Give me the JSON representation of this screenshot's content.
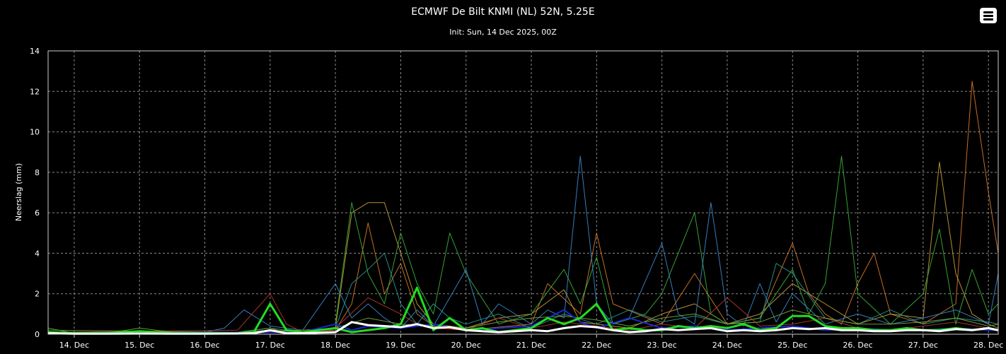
{
  "chart": {
    "title": "ECMWF De Bilt KNMI (NL) 52N, 5.25E",
    "subtitle": "Init: Sun, 14 Dec 2025, 00Z",
    "menu_icon": "hamburger-menu-icon"
  },
  "chart_data": {
    "type": "line",
    "ylabel": "Neerslag (mm)",
    "xlabel": "",
    "ylim": [
      0,
      14
    ],
    "yticks": [
      0,
      2,
      4,
      6,
      8,
      10,
      12,
      14
    ],
    "xlim": [
      13.6,
      28.15
    ],
    "xticks": [
      {
        "day": 14,
        "label": "14. Dec"
      },
      {
        "day": 15,
        "label": "15. Dec"
      },
      {
        "day": 16,
        "label": "16. Dec"
      },
      {
        "day": 17,
        "label": "17. Dec"
      },
      {
        "day": 18,
        "label": "18. Dec"
      },
      {
        "day": 19,
        "label": "19. Dec"
      },
      {
        "day": 20,
        "label": "20. Dec"
      },
      {
        "day": 21,
        "label": "21. Dec"
      },
      {
        "day": 22,
        "label": "22. Dec"
      },
      {
        "day": 23,
        "label": "23. Dec"
      },
      {
        "day": 24,
        "label": "24. Dec"
      },
      {
        "day": 25,
        "label": "25. Dec"
      },
      {
        "day": 26,
        "label": "26. Dec"
      },
      {
        "day": 27,
        "label": "27. Dec"
      },
      {
        "day": 28,
        "label": "28. Dec"
      }
    ],
    "grid": true,
    "series": [
      {
        "color": "#d87a2a",
        "width": 1,
        "x": [
          13.6,
          16.5,
          17.0,
          17.2,
          18.0,
          18.25,
          18.5,
          18.75,
          19.0,
          19.25,
          19.5,
          20.0,
          21.0,
          21.25,
          21.75,
          22.0,
          22.25,
          23.0,
          23.5,
          24.0,
          24.5,
          25.0,
          25.25,
          25.5,
          25.75,
          26.0,
          26.25,
          26.5,
          27.0,
          27.5,
          27.75,
          28.0,
          28.15
        ],
        "y": [
          0.1,
          0.1,
          0.3,
          0.1,
          0.2,
          1.5,
          5.5,
          2.0,
          3.5,
          1.0,
          0.4,
          0.2,
          0.5,
          2.5,
          1.0,
          5.0,
          1.5,
          0.5,
          3.0,
          0.5,
          0.8,
          4.5,
          2.0,
          1.0,
          0.5,
          2.5,
          4.0,
          1.0,
          0.5,
          1.5,
          12.5,
          7.0,
          4.0
        ]
      },
      {
        "color": "#c9a13a",
        "width": 1,
        "x": [
          13.6,
          16.5,
          17.5,
          18.0,
          18.25,
          18.5,
          18.75,
          19.0,
          19.25,
          19.5,
          20.0,
          20.5,
          21.0,
          21.5,
          21.75,
          22.0,
          22.5,
          23.0,
          23.5,
          24.0,
          24.5,
          25.0,
          25.5,
          26.0,
          26.5,
          27.0,
          27.25,
          27.5,
          27.75,
          28.0,
          28.15
        ],
        "y": [
          0.1,
          0.1,
          0.2,
          0.3,
          6.0,
          6.5,
          6.5,
          4.0,
          1.5,
          0.5,
          0.3,
          0.8,
          1.0,
          2.2,
          0.6,
          0.5,
          0.3,
          1.0,
          1.5,
          0.5,
          1.0,
          2.5,
          1.5,
          0.5,
          1.0,
          0.8,
          8.5,
          3.0,
          1.0,
          0.5,
          0.3
        ]
      },
      {
        "color": "#3bb33b",
        "width": 1,
        "x": [
          13.6,
          16.5,
          17.0,
          17.5,
          18.0,
          18.25,
          18.5,
          18.75,
          19.0,
          19.25,
          19.5,
          19.75,
          20.0,
          20.5,
          21.0,
          21.5,
          21.75,
          22.0,
          22.25,
          22.75,
          23.0,
          23.5,
          23.75,
          24.0,
          24.5,
          25.0,
          25.25,
          25.5,
          25.75,
          26.0,
          26.5,
          27.0,
          27.25,
          27.5,
          27.75,
          28.0,
          28.15
        ],
        "y": [
          0.2,
          0.1,
          0.3,
          0.1,
          0.5,
          6.5,
          3.0,
          1.5,
          5.0,
          2.5,
          1.0,
          5.0,
          3.0,
          0.5,
          1.0,
          3.2,
          1.5,
          3.8,
          0.5,
          1.0,
          2.0,
          6.0,
          1.0,
          0.5,
          0.8,
          3.2,
          1.0,
          2.5,
          8.8,
          2.0,
          0.5,
          2.0,
          5.2,
          0.5,
          3.2,
          1.0,
          1.5
        ]
      },
      {
        "color": "#3a8ad0",
        "width": 1,
        "x": [
          13.6,
          16.0,
          16.3,
          16.6,
          17.0,
          17.5,
          18.0,
          18.25,
          18.5,
          18.75,
          19.0,
          19.25,
          19.5,
          20.0,
          20.25,
          20.5,
          21.0,
          21.25,
          21.5,
          21.75,
          22.0,
          22.25,
          22.5,
          23.0,
          23.25,
          23.5,
          23.75,
          24.0,
          24.25,
          24.5,
          24.75,
          25.0,
          25.5,
          26.0,
          26.5,
          27.0,
          27.5,
          28.0,
          28.15
        ],
        "y": [
          0.1,
          0.1,
          0.3,
          1.2,
          0.4,
          0.2,
          2.5,
          0.8,
          1.5,
          0.8,
          0.3,
          1.2,
          0.4,
          3.2,
          0.5,
          1.5,
          0.5,
          1.2,
          0.8,
          8.8,
          1.5,
          0.5,
          0.8,
          4.5,
          1.0,
          0.5,
          6.5,
          1.0,
          0.4,
          2.5,
          0.6,
          2.0,
          0.5,
          1.0,
          0.5,
          0.8,
          1.2,
          0.5,
          3.0
        ]
      },
      {
        "color": "#2a9a9a",
        "width": 1,
        "x": [
          13.6,
          16.5,
          17.0,
          17.5,
          18.0,
          18.25,
          18.5,
          18.75,
          19.0,
          19.25,
          19.5,
          19.75,
          20.0,
          20.5,
          21.0,
          21.5,
          22.0,
          22.5,
          23.0,
          23.5,
          24.0,
          24.5,
          24.75,
          25.0,
          25.5,
          26.0,
          26.5,
          27.0,
          27.5,
          28.0,
          28.15
        ],
        "y": [
          0.1,
          0.1,
          0.2,
          0.1,
          0.3,
          2.5,
          3.2,
          4.0,
          1.5,
          0.5,
          1.5,
          0.8,
          0.5,
          1.0,
          0.3,
          1.0,
          0.5,
          1.2,
          0.6,
          0.9,
          0.5,
          0.6,
          3.5,
          3.0,
          0.8,
          0.5,
          1.2,
          0.5,
          0.8,
          0.6,
          0.5
        ]
      },
      {
        "color": "#b83a2a",
        "width": 1,
        "x": [
          13.6,
          16.5,
          17.0,
          17.25,
          17.5,
          18.0,
          18.5,
          19.0,
          19.25,
          19.5,
          20.0,
          20.5,
          21.0,
          21.5,
          22.0,
          22.5,
          23.0,
          23.5,
          24.0,
          24.5,
          25.0,
          25.5,
          26.0,
          26.5,
          27.0,
          27.5,
          28.0,
          28.15
        ],
        "y": [
          0.1,
          0.2,
          2.0,
          0.5,
          0.1,
          0.3,
          1.8,
          1.0,
          0.5,
          0.3,
          0.2,
          0.8,
          0.3,
          0.6,
          0.4,
          0.2,
          0.5,
          0.3,
          1.8,
          0.4,
          0.5,
          0.8,
          0.3,
          0.2,
          0.4,
          0.6,
          0.3,
          0.2
        ]
      },
      {
        "color": "#7aa83a",
        "width": 1,
        "x": [
          13.6,
          14.0,
          14.5,
          15.0,
          15.5,
          16.0,
          16.5,
          17.0,
          17.5,
          18.0,
          18.5,
          19.0,
          19.5,
          20.0,
          20.5,
          21.0,
          21.5,
          22.0,
          22.5,
          23.0,
          23.5,
          24.0,
          24.5,
          25.0,
          25.5,
          26.0,
          26.5,
          27.0,
          27.5,
          28.0,
          28.15
        ],
        "y": [
          0.3,
          0.05,
          0.05,
          0.3,
          0.1,
          0.05,
          0.05,
          0.2,
          0.1,
          0.3,
          0.8,
          0.5,
          0.4,
          0.3,
          0.6,
          0.8,
          0.9,
          0.7,
          0.4,
          0.8,
          1.0,
          0.5,
          0.6,
          1.2,
          0.8,
          0.5,
          0.5,
          0.6,
          0.8,
          0.4,
          0.5
        ]
      },
      {
        "color": "#1a2ad0",
        "width": 2,
        "x": [
          13.6,
          17.5,
          18.0,
          18.25,
          18.5,
          19.0,
          19.5,
          20.0,
          20.5,
          21.0,
          21.25,
          21.5,
          21.75,
          22.0,
          22.5,
          23.0,
          23.5,
          24.0,
          24.5,
          25.0,
          25.5,
          26.0,
          26.5,
          27.0,
          27.5,
          28.0,
          28.15
        ],
        "y": [
          0.05,
          0.1,
          0.5,
          0.2,
          0.4,
          0.3,
          0.5,
          0.2,
          0.3,
          0.4,
          0.8,
          1.2,
          0.6,
          0.3,
          0.8,
          0.3,
          0.4,
          0.2,
          0.3,
          0.4,
          0.2,
          0.3,
          0.2,
          0.2,
          0.3,
          0.2,
          0.2
        ]
      },
      {
        "color": "#22dd22",
        "width": 3,
        "x": [
          13.6,
          14.0,
          14.5,
          15.0,
          15.5,
          16.0,
          16.5,
          16.75,
          17.0,
          17.25,
          17.5,
          17.75,
          18.0,
          18.25,
          18.5,
          18.75,
          19.0,
          19.25,
          19.5,
          19.75,
          20.0,
          20.25,
          20.5,
          20.75,
          21.0,
          21.25,
          21.5,
          21.75,
          22.0,
          22.25,
          22.5,
          22.75,
          23.0,
          23.25,
          23.5,
          23.75,
          24.0,
          24.25,
          24.5,
          24.75,
          25.0,
          25.25,
          25.5,
          25.75,
          26.0,
          26.25,
          26.5,
          26.75,
          27.0,
          27.25,
          27.5,
          27.75,
          28.0,
          28.15
        ],
        "y": [
          0.1,
          0.05,
          0.05,
          0.15,
          0.05,
          0.05,
          0.05,
          0.1,
          1.5,
          0.2,
          0.1,
          0.2,
          0.3,
          0.1,
          0.2,
          0.3,
          0.5,
          2.3,
          0.2,
          0.8,
          0.2,
          0.3,
          0.1,
          0.2,
          0.3,
          0.8,
          0.5,
          0.8,
          1.5,
          0.2,
          0.3,
          0.2,
          0.2,
          0.4,
          0.3,
          0.4,
          0.3,
          0.5,
          0.2,
          0.3,
          0.9,
          0.9,
          0.4,
          0.3,
          0.3,
          0.2,
          0.2,
          0.3,
          0.2,
          0.2,
          0.3,
          0.2,
          0.3,
          0.2
        ]
      },
      {
        "color": "#ffffff",
        "width": 3,
        "x": [
          13.6,
          14.0,
          14.5,
          15.0,
          15.5,
          16.0,
          16.5,
          16.75,
          17.0,
          17.25,
          17.5,
          17.75,
          18.0,
          18.25,
          18.5,
          18.75,
          19.0,
          19.25,
          19.5,
          19.75,
          20.0,
          20.25,
          20.5,
          20.75,
          21.0,
          21.25,
          21.5,
          21.75,
          22.0,
          22.25,
          22.5,
          22.75,
          23.0,
          23.25,
          23.5,
          23.75,
          24.0,
          24.25,
          24.5,
          24.75,
          25.0,
          25.25,
          25.5,
          25.75,
          26.0,
          26.25,
          26.5,
          26.75,
          27.0,
          27.25,
          27.5,
          27.75,
          28.0,
          28.15
        ],
        "y": [
          0.05,
          0.02,
          0.02,
          0.03,
          0.02,
          0.02,
          0.03,
          0.05,
          0.2,
          0.05,
          0.05,
          0.08,
          0.1,
          0.6,
          0.45,
          0.4,
          0.35,
          0.5,
          0.3,
          0.35,
          0.2,
          0.15,
          0.1,
          0.15,
          0.2,
          0.15,
          0.3,
          0.4,
          0.35,
          0.2,
          0.1,
          0.15,
          0.25,
          0.2,
          0.25,
          0.3,
          0.15,
          0.2,
          0.15,
          0.2,
          0.3,
          0.25,
          0.3,
          0.2,
          0.2,
          0.15,
          0.15,
          0.2,
          0.2,
          0.15,
          0.25,
          0.2,
          0.3,
          0.2
        ]
      }
    ]
  }
}
